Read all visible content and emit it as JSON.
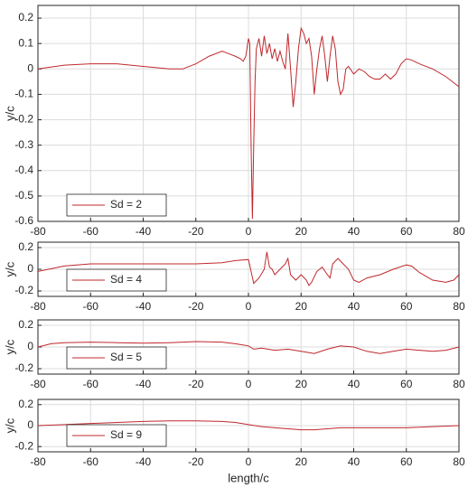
{
  "chart_data": [
    {
      "type": "line",
      "ylabel": "y/c",
      "xlim": [
        -80,
        80
      ],
      "xticks": [
        -80,
        -60,
        -40,
        -20,
        0,
        20,
        40,
        60,
        80
      ],
      "ylim": [
        -0.6,
        0.25
      ],
      "yticks": [
        -0.6,
        -0.5,
        -0.4,
        -0.3,
        -0.2,
        -0.1,
        0,
        0.1,
        0.2
      ],
      "grid": true,
      "legend": "lower left",
      "x": [
        -80,
        -70,
        -60,
        -50,
        -40,
        -30,
        -25,
        -20,
        -15,
        -10,
        -5,
        -3,
        -2,
        -1,
        0,
        0.5,
        1,
        1.5,
        2,
        2.5,
        3,
        4,
        5,
        6,
        7,
        8,
        9,
        10,
        11,
        12,
        13,
        14,
        15,
        16,
        17,
        18,
        19,
        20,
        21,
        22,
        23,
        24,
        25,
        26,
        27,
        28,
        29,
        30,
        31,
        32,
        33,
        34,
        35,
        36,
        37,
        38,
        40,
        42,
        44,
        46,
        48,
        50,
        52,
        54,
        56,
        58,
        60,
        62,
        65,
        70,
        75,
        80
      ],
      "series": [
        {
          "name": "Sd = 2",
          "color": "#c0282d",
          "values": [
            0,
            0.015,
            0.02,
            0.02,
            0.01,
            0.0,
            0.0,
            0.02,
            0.05,
            0.07,
            0.05,
            0.04,
            0.03,
            0.05,
            0.12,
            0.1,
            -0.3,
            -0.59,
            -0.3,
            -0.05,
            0.08,
            0.12,
            0.05,
            0.13,
            0.06,
            0.1,
            0.04,
            0.08,
            0.03,
            0.07,
            0.03,
            0.0,
            0.14,
            0.0,
            -0.15,
            -0.05,
            0.08,
            0.16,
            0.14,
            0.1,
            0.12,
            0.05,
            -0.1,
            0.0,
            0.08,
            0.13,
            0.05,
            -0.05,
            0.05,
            0.13,
            0.08,
            -0.05,
            -0.1,
            -0.08,
            0.0,
            0.01,
            -0.02,
            0.0,
            -0.01,
            -0.03,
            -0.04,
            -0.04,
            -0.02,
            -0.04,
            -0.02,
            0.02,
            0.04,
            0.035,
            0.02,
            0.0,
            -0.03,
            -0.07
          ]
        }
      ]
    },
    {
      "type": "line",
      "ylabel": "y/c",
      "xlim": [
        -80,
        80
      ],
      "xticks": [
        -80,
        -60,
        -40,
        -20,
        0,
        20,
        40,
        60,
        80
      ],
      "ylim": [
        -0.25,
        0.25
      ],
      "yticks": [
        -0.2,
        0,
        0.2
      ],
      "grid": true,
      "legend": "lower left",
      "x": [
        -80,
        -70,
        -60,
        -50,
        -40,
        -30,
        -20,
        -10,
        -5,
        0,
        2,
        4,
        6,
        7,
        8,
        9,
        10,
        12,
        14,
        15,
        16,
        18,
        20,
        22,
        23,
        24,
        26,
        28,
        30,
        31,
        32,
        34,
        36,
        38,
        40,
        42,
        45,
        50,
        55,
        60,
        62,
        65,
        70,
        75,
        78,
        80
      ],
      "series": [
        {
          "name": "Sd = 4",
          "color": "#c0282d",
          "values": [
            -0.02,
            0.03,
            0.05,
            0.05,
            0.05,
            0.05,
            0.05,
            0.06,
            0.08,
            0.09,
            -0.13,
            -0.08,
            0.0,
            0.16,
            0.02,
            0.0,
            -0.05,
            0.0,
            0.05,
            0.1,
            -0.05,
            -0.1,
            -0.05,
            -0.1,
            -0.15,
            -0.12,
            -0.02,
            0.02,
            -0.05,
            -0.08,
            0.05,
            0.1,
            0.05,
            0.0,
            -0.1,
            -0.12,
            -0.08,
            -0.05,
            0.0,
            0.04,
            0.03,
            -0.03,
            -0.1,
            -0.12,
            -0.1,
            -0.05
          ]
        }
      ]
    },
    {
      "type": "line",
      "ylabel": "y/c",
      "xlim": [
        -80,
        80
      ],
      "xticks": [
        -80,
        -60,
        -40,
        -20,
        0,
        20,
        40,
        60,
        80
      ],
      "ylim": [
        -0.25,
        0.25
      ],
      "yticks": [
        -0.2,
        0,
        0.2
      ],
      "grid": true,
      "legend": "lower left",
      "x": [
        -80,
        -75,
        -70,
        -60,
        -50,
        -40,
        -30,
        -20,
        -10,
        -5,
        0,
        2,
        5,
        10,
        15,
        20,
        25,
        30,
        35,
        40,
        45,
        50,
        55,
        60,
        65,
        70,
        75,
        80
      ],
      "series": [
        {
          "name": "Sd = 5",
          "color": "#c0282d",
          "values": [
            0.0,
            0.03,
            0.04,
            0.045,
            0.04,
            0.035,
            0.04,
            0.05,
            0.045,
            0.03,
            0.01,
            -0.02,
            -0.01,
            -0.03,
            -0.02,
            -0.04,
            -0.06,
            -0.02,
            0.01,
            0.0,
            -0.04,
            -0.06,
            -0.04,
            -0.02,
            -0.03,
            -0.04,
            -0.03,
            0.0
          ]
        }
      ]
    },
    {
      "type": "line",
      "ylabel": "y/c",
      "xlabel": "length/c",
      "xlim": [
        -80,
        80
      ],
      "xticks": [
        -80,
        -60,
        -40,
        -20,
        0,
        20,
        40,
        60,
        80
      ],
      "ylim": [
        -0.25,
        0.25
      ],
      "yticks": [
        -0.2,
        0,
        0.2
      ],
      "grid": true,
      "legend": "lower left",
      "x": [
        -80,
        -70,
        -60,
        -50,
        -40,
        -30,
        -20,
        -10,
        -5,
        0,
        5,
        10,
        15,
        20,
        25,
        30,
        35,
        40,
        50,
        60,
        70,
        80
      ],
      "series": [
        {
          "name": "Sd = 9",
          "color": "#c0282d",
          "values": [
            0.0,
            0.01,
            0.02,
            0.03,
            0.04,
            0.045,
            0.045,
            0.04,
            0.03,
            0.01,
            -0.01,
            -0.02,
            -0.03,
            -0.04,
            -0.04,
            -0.03,
            -0.02,
            -0.02,
            -0.02,
            -0.02,
            -0.01,
            0.0
          ]
        }
      ]
    }
  ]
}
